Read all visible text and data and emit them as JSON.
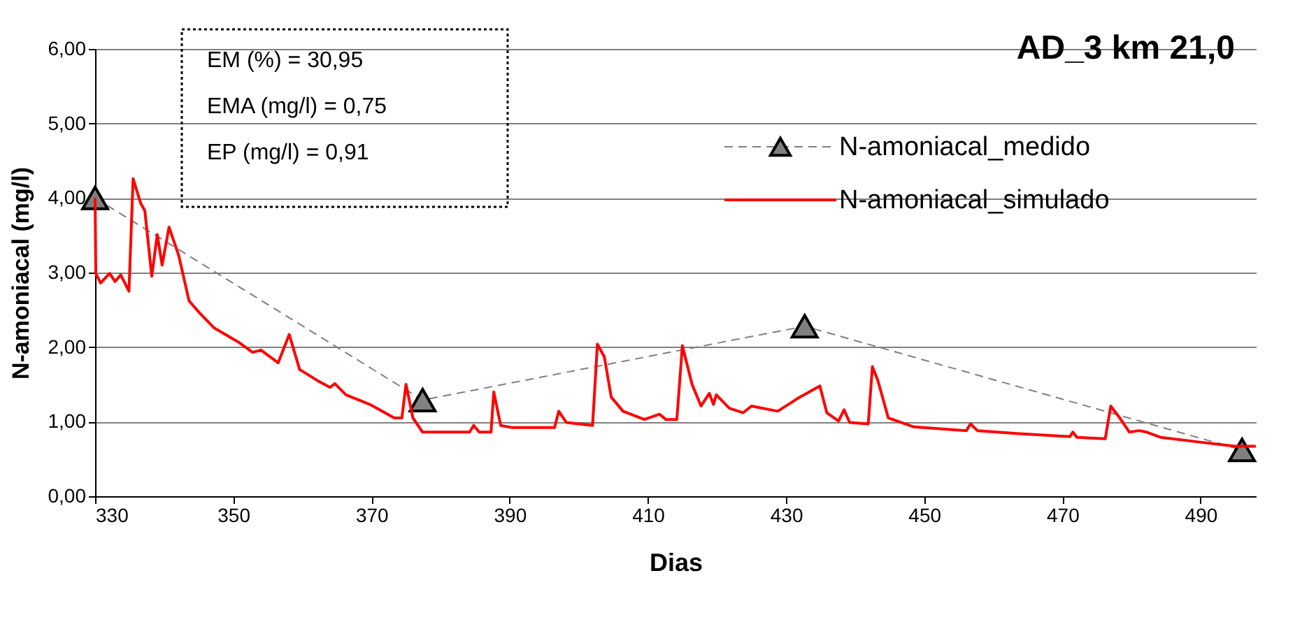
{
  "chart_data": {
    "type": "line",
    "title": "AD_3 km 21,0",
    "xlabel": "Dias",
    "ylabel": "N-amoniacal (mg/l)",
    "xlim": [
      330,
      498
    ],
    "xticks": [
      330,
      350,
      370,
      390,
      410,
      430,
      450,
      470,
      490
    ],
    "ylim": [
      0,
      6
    ],
    "yticks": [
      {
        "value": 0,
        "label": "0,00"
      },
      {
        "value": 1,
        "label": "1,00"
      },
      {
        "value": 2,
        "label": "2,00"
      },
      {
        "value": 3,
        "label": "3,00"
      },
      {
        "value": 4,
        "label": "4,00"
      },
      {
        "value": 5,
        "label": "5,00"
      },
      {
        "value": 6,
        "label": "6,00"
      }
    ],
    "grid": "y",
    "legend": "top right",
    "annotations": [
      "EM (%)   =   30,95",
      "EMA (mg/l)   =   0,75",
      "EP (mg/l)   =   0,91"
    ],
    "series": [
      {
        "name": "N-amoniacal_medido",
        "color": "#808080",
        "marker": "triangle",
        "line_style": "dashed",
        "x": [
          330,
          377.4,
          432.7,
          496
        ],
        "values": [
          4.0,
          1.29,
          2.28,
          0.62
        ]
      },
      {
        "name": "N-amoniacal_simulado",
        "color": "#ff0000",
        "marker": "none",
        "line_style": "solid",
        "x": [
          330,
          330.1,
          330.8,
          332.1,
          332.9,
          333.7,
          334.9,
          335.5,
          336.6,
          337.2,
          338.2,
          339,
          339.7,
          340.7,
          342.1,
          343.6,
          345.2,
          347.2,
          350.7,
          352.8,
          354,
          356.5,
          358.1,
          359.6,
          362.2,
          364,
          364.7,
          366.3,
          369.8,
          373.3,
          374.4,
          375,
          376,
          377.4,
          381.5,
          384.2,
          384.8,
          385.6,
          387.3,
          387.7,
          388.7,
          390.4,
          396.5,
          397.1,
          398.2,
          402,
          402.7,
          403.7,
          404.7,
          406.4,
          409.5,
          411.7,
          412.6,
          414.2,
          415,
          416.4,
          417.7,
          418.9,
          419.5,
          419.9,
          421.8,
          423.8,
          425,
          428.8,
          432,
          434.9,
          435.9,
          437.6,
          438.4,
          439.2,
          441.9,
          442.5,
          443.3,
          444.8,
          448.5,
          456.1,
          456.7,
          457.7,
          463.7,
          471.1,
          471.5,
          472.1,
          476.2,
          477,
          478.3,
          479.7,
          481.1,
          482.2,
          484.2,
          489.5,
          495,
          498
        ],
        "values": [
          4.0,
          2.99,
          2.86,
          2.99,
          2.88,
          2.97,
          2.75,
          4.26,
          3.93,
          3.83,
          2.95,
          3.51,
          3.1,
          3.61,
          3.23,
          2.62,
          2.45,
          2.26,
          2.07,
          1.93,
          1.96,
          1.79,
          2.17,
          1.7,
          1.55,
          1.46,
          1.51,
          1.36,
          1.23,
          1.05,
          1.05,
          1.5,
          1.05,
          0.86,
          0.86,
          0.86,
          0.95,
          0.86,
          0.86,
          1.4,
          0.95,
          0.92,
          0.92,
          1.14,
          0.99,
          0.95,
          2.04,
          1.87,
          1.33,
          1.14,
          1.03,
          1.1,
          1.03,
          1.03,
          2.02,
          1.5,
          1.21,
          1.38,
          1.23,
          1.36,
          1.18,
          1.12,
          1.21,
          1.14,
          1.33,
          1.48,
          1.12,
          1.01,
          1.16,
          0.99,
          0.97,
          1.74,
          1.55,
          1.05,
          0.93,
          0.88,
          0.97,
          0.88,
          0.84,
          0.8,
          0.86,
          0.79,
          0.77,
          1.21,
          1.05,
          0.86,
          0.88,
          0.86,
          0.79,
          0.73,
          0.67,
          0.67
        ]
      }
    ]
  }
}
